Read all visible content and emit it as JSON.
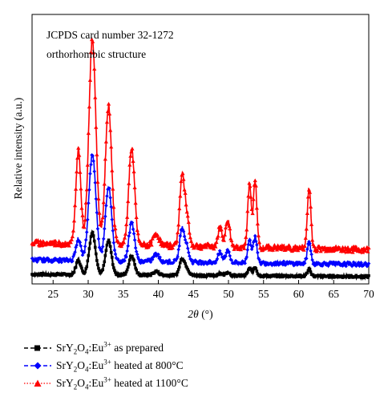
{
  "chart_data": {
    "type": "line",
    "title": "",
    "annotations": [
      "JCPDS card number 32-1272",
      "orthorhombic structure"
    ],
    "xlabel_symbol": "2θ",
    "xlabel_unit": "(°)",
    "ylabel": "Relative intensity (a.u.)",
    "xlim": [
      22,
      70
    ],
    "xticks": [
      "25",
      "30",
      "35",
      "40",
      "45",
      "50",
      "55",
      "60",
      "65",
      "70"
    ],
    "grid": false,
    "legend_position": "bottom-left, below plot",
    "series": [
      {
        "name": "SrY2O4:Eu3+ as prepared",
        "legend": {
          "formula": "SrY",
          "sub": "2",
          "o": "O",
          "sub2": "4",
          "dopant": ":Eu",
          "sup": "3+",
          "suffix": " as prepared"
        },
        "color": "#000000",
        "marker": "square",
        "baseline": 4,
        "peaks": [
          [
            28.6,
            12,
            0.35
          ],
          [
            30.6,
            35,
            0.45
          ],
          [
            32.9,
            28,
            0.42
          ],
          [
            36.2,
            16,
            0.4
          ],
          [
            39.7,
            3,
            0.4
          ],
          [
            43.4,
            14,
            0.35
          ],
          [
            44.1,
            5,
            0.3
          ],
          [
            48.8,
            2,
            0.3
          ],
          [
            49.9,
            3,
            0.3
          ],
          [
            53.0,
            6,
            0.25
          ],
          [
            53.8,
            7,
            0.25
          ],
          [
            61.5,
            6,
            0.25
          ]
        ]
      },
      {
        "name": "SrY2O4:Eu3+ heated at 800°C",
        "legend": {
          "formula": "SrY",
          "sub": "2",
          "o": "O",
          "sub2": "4",
          "dopant": ":Eu",
          "sup": "3+",
          "suffix": " heated at 800°C"
        },
        "color": "#0000ff",
        "marker": "diamond",
        "baseline": 16,
        "peaks": [
          [
            28.6,
            18,
            0.35
          ],
          [
            30.6,
            88,
            0.5
          ],
          [
            32.9,
            62,
            0.45
          ],
          [
            36.2,
            32,
            0.4
          ],
          [
            39.7,
            6,
            0.4
          ],
          [
            43.4,
            28,
            0.35
          ],
          [
            44.1,
            10,
            0.3
          ],
          [
            48.8,
            8,
            0.3
          ],
          [
            49.9,
            10,
            0.3
          ],
          [
            53.0,
            20,
            0.25
          ],
          [
            53.8,
            22,
            0.25
          ],
          [
            61.5,
            18,
            0.25
          ]
        ]
      },
      {
        "name": "SrY2O4:Eu3+ heated at 1100°C",
        "legend": {
          "formula": "SrY",
          "sub": "2",
          "o": "O",
          "sub2": "4",
          "dopant": ":Eu",
          "sup": "3+",
          "suffix": " heated at 1100°C"
        },
        "color": "#ff0000",
        "marker": "triangle",
        "baseline": 30,
        "peaks": [
          [
            28.6,
            78,
            0.35
          ],
          [
            30.6,
            170,
            0.5
          ],
          [
            32.9,
            115,
            0.45
          ],
          [
            36.2,
            80,
            0.42
          ],
          [
            39.7,
            10,
            0.4
          ],
          [
            43.4,
            58,
            0.35
          ],
          [
            44.1,
            22,
            0.3
          ],
          [
            48.8,
            16,
            0.3
          ],
          [
            49.9,
            22,
            0.3
          ],
          [
            53.0,
            52,
            0.25
          ],
          [
            53.8,
            55,
            0.25
          ],
          [
            61.5,
            50,
            0.25
          ]
        ]
      }
    ]
  }
}
